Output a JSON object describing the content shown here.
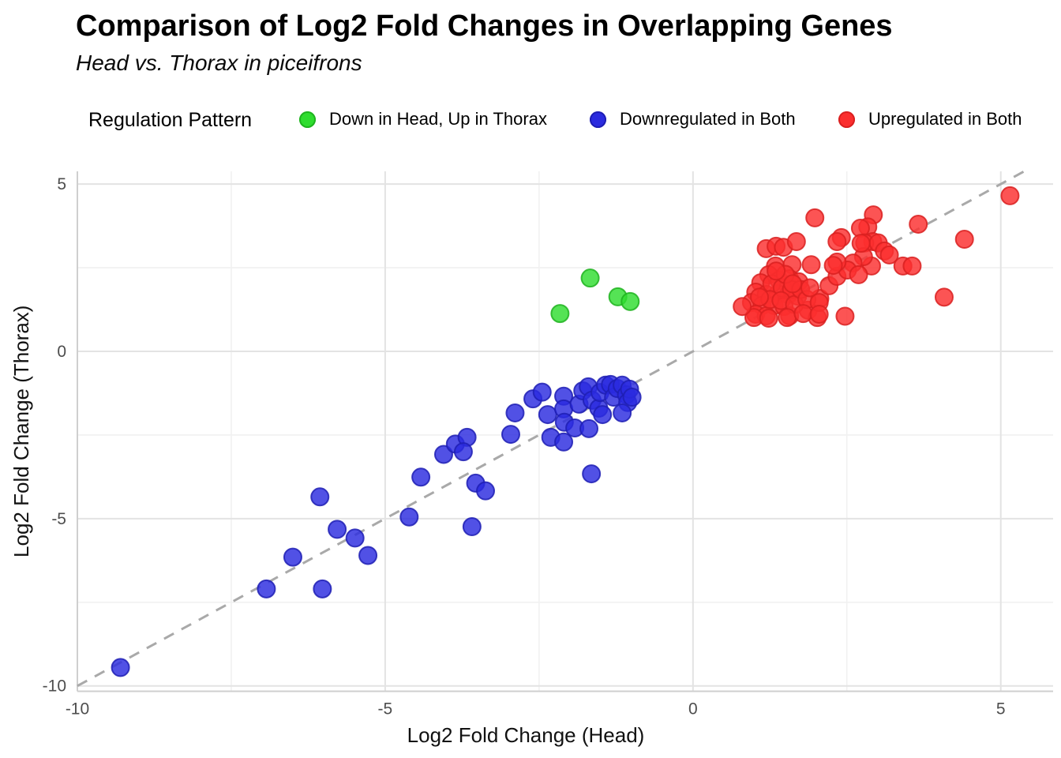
{
  "title": "Comparison of Log2 Fold Changes in Overlapping Genes",
  "subtitle": "Head vs. Thorax in piceifrons",
  "legend": {
    "title": "Regulation Pattern",
    "position": "top",
    "items": [
      {
        "label": "Down in Head, Up in Thorax",
        "color": "#2fdd2f",
        "stroke": "#1fb31f"
      },
      {
        "label": "Downregulated in Both",
        "color": "#2b2bdf",
        "stroke": "#1e1eb4"
      },
      {
        "label": "Upregulated in Both",
        "color": "#fb2e2e",
        "stroke": "#d92020"
      }
    ]
  },
  "chart_data": {
    "type": "scatter",
    "title": "Comparison of Log2 Fold Changes in Overlapping Genes",
    "subtitle": "Head vs. Thorax in piceifrons",
    "xlabel": "Log2 Fold Change (Head)",
    "ylabel": "Log2 Fold Change (Thorax)",
    "xlim": [
      -10,
      5.85
    ],
    "ylim": [
      -10.16,
      5.38
    ],
    "xticks": [
      -10,
      -5,
      0,
      5
    ],
    "yticks": [
      -10,
      -5,
      0,
      5
    ],
    "xminor": [
      -7.5,
      -2.5,
      2.5
    ],
    "yminor": [
      -7.5,
      -2.5,
      2.5
    ],
    "grid": true,
    "legend_position": "top",
    "identity_line": {
      "equation": "y = x",
      "style": "dashed",
      "color": "#a9a9a9"
    },
    "series": [
      {
        "name": "Down in Head, Up in Thorax",
        "color": "#2fdd2f",
        "stroke": "#1fb31f",
        "points": [
          [
            -2.16,
            1.13
          ],
          [
            -1.67,
            2.19
          ],
          [
            -1.22,
            1.63
          ],
          [
            -1.02,
            1.49
          ]
        ]
      },
      {
        "name": "Downregulated in Both",
        "color": "#2b2bdf",
        "stroke": "#1e1eb4",
        "points": [
          [
            -9.3,
            -9.45
          ],
          [
            -6.93,
            -7.1
          ],
          [
            -6.02,
            -7.1
          ],
          [
            -6.5,
            -6.15
          ],
          [
            -5.28,
            -6.1
          ],
          [
            -6.06,
            -4.35
          ],
          [
            -5.78,
            -5.32
          ],
          [
            -5.49,
            -5.58
          ],
          [
            -4.61,
            -4.95
          ],
          [
            -4.42,
            -3.76
          ],
          [
            -4.05,
            -3.08
          ],
          [
            -3.86,
            -2.77
          ],
          [
            -3.67,
            -2.57
          ],
          [
            -3.73,
            -3.0
          ],
          [
            -3.53,
            -3.94
          ],
          [
            -3.37,
            -4.17
          ],
          [
            -3.59,
            -5.24
          ],
          [
            -2.96,
            -2.48
          ],
          [
            -2.89,
            -1.84
          ],
          [
            -2.6,
            -1.42
          ],
          [
            -2.45,
            -1.22
          ],
          [
            -2.36,
            -1.89
          ],
          [
            -2.31,
            -2.57
          ],
          [
            -2.1,
            -1.34
          ],
          [
            -2.1,
            -1.72
          ],
          [
            -2.09,
            -2.12
          ],
          [
            -2.1,
            -2.71
          ],
          [
            -1.92,
            -2.29
          ],
          [
            -1.85,
            -1.58
          ],
          [
            -1.79,
            -1.18
          ],
          [
            -1.7,
            -1.06
          ],
          [
            -1.64,
            -1.46
          ],
          [
            -1.53,
            -1.7
          ],
          [
            -1.51,
            -1.23
          ],
          [
            -1.42,
            -1.01
          ],
          [
            -1.34,
            -0.99
          ],
          [
            -1.29,
            -1.37
          ],
          [
            -1.23,
            -1.11
          ],
          [
            -1.15,
            -1.01
          ],
          [
            -1.08,
            -1.3
          ],
          [
            -1.06,
            -1.53
          ],
          [
            -1.69,
            -2.31
          ],
          [
            -1.65,
            -3.66
          ],
          [
            -1.47,
            -1.89
          ],
          [
            -1.15,
            -1.84
          ],
          [
            -1.03,
            -1.13
          ],
          [
            -0.99,
            -1.37
          ]
        ]
      },
      {
        "name": "Upregulated in Both",
        "color": "#fb2e2e",
        "stroke": "#d92020",
        "points": [
          [
            1.98,
            3.99
          ],
          [
            2.93,
            4.08
          ],
          [
            2.84,
            3.72
          ],
          [
            2.72,
            3.68
          ],
          [
            2.92,
            3.28
          ],
          [
            2.79,
            3.24
          ],
          [
            3.01,
            3.24
          ],
          [
            3.11,
            3.0
          ],
          [
            3.19,
            2.88
          ],
          [
            3.66,
            3.8
          ],
          [
            4.41,
            3.35
          ],
          [
            5.15,
            4.65
          ],
          [
            2.41,
            3.4
          ],
          [
            2.34,
            3.28
          ],
          [
            1.19,
            3.07
          ],
          [
            1.35,
            3.14
          ],
          [
            1.47,
            3.11
          ],
          [
            1.68,
            3.28
          ],
          [
            1.34,
            2.55
          ],
          [
            1.61,
            2.59
          ],
          [
            1.92,
            2.59
          ],
          [
            1.23,
            2.29
          ],
          [
            1.4,
            2.12
          ],
          [
            1.57,
            2.17
          ],
          [
            1.72,
            2.08
          ],
          [
            1.1,
            2.05
          ],
          [
            1.02,
            1.77
          ],
          [
            1.19,
            1.7
          ],
          [
            1.38,
            1.72
          ],
          [
            1.55,
            1.7
          ],
          [
            1.7,
            1.65
          ],
          [
            0.95,
            1.46
          ],
          [
            1.12,
            1.37
          ],
          [
            1.32,
            1.37
          ],
          [
            1.48,
            1.34
          ],
          [
            1.02,
            1.11
          ],
          [
            1.19,
            1.06
          ],
          [
            1.57,
            1.06
          ],
          [
            1.87,
            1.23
          ],
          [
            2.06,
            1.58
          ],
          [
            2.21,
            1.96
          ],
          [
            2.34,
            2.24
          ],
          [
            2.02,
            1.01
          ],
          [
            1.28,
            2.02
          ],
          [
            1.45,
            1.9
          ],
          [
            1.6,
            1.85
          ],
          [
            1.25,
            1.55
          ],
          [
            1.43,
            1.52
          ],
          [
            1.08,
            1.62
          ],
          [
            1.65,
            1.4
          ],
          [
            1.5,
            2.3
          ],
          [
            1.75,
            1.85
          ],
          [
            1.35,
            2.4
          ],
          [
            1.85,
            1.55
          ],
          [
            1.62,
            2.02
          ],
          [
            1.9,
            1.9
          ],
          [
            3.41,
            2.55
          ],
          [
            3.56,
            2.55
          ],
          [
            2.9,
            2.55
          ],
          [
            2.77,
            2.83
          ],
          [
            2.73,
            3.23
          ],
          [
            2.6,
            2.64
          ],
          [
            2.51,
            2.43
          ],
          [
            2.69,
            2.29
          ],
          [
            2.34,
            2.67
          ],
          [
            2.28,
            2.57
          ],
          [
            0.99,
            1.01
          ],
          [
            1.23,
            0.99
          ],
          [
            1.53,
            1.01
          ],
          [
            1.79,
            1.13
          ],
          [
            2.05,
            1.46
          ],
          [
            2.05,
            1.11
          ],
          [
            0.8,
            1.34
          ],
          [
            2.47,
            1.05
          ],
          [
            4.08,
            1.62
          ]
        ]
      }
    ]
  }
}
